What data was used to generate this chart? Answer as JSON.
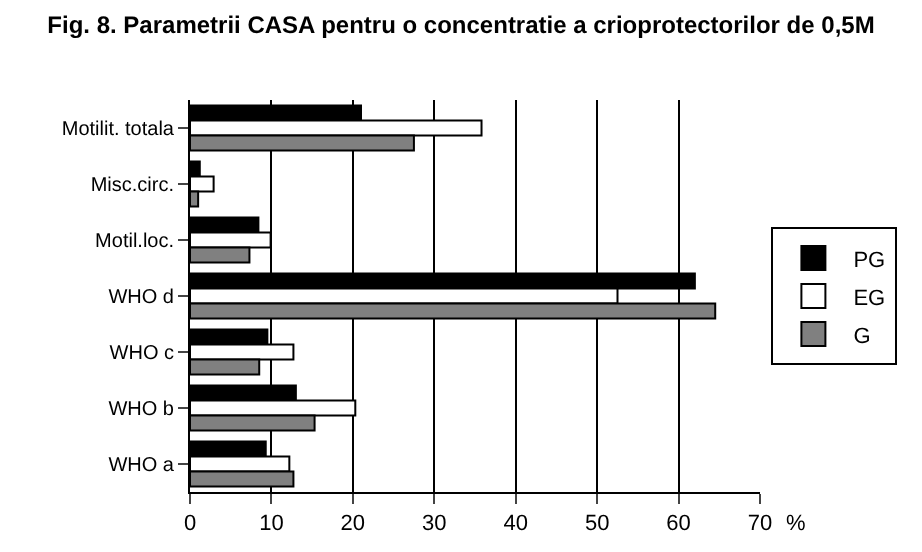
{
  "chart_data": {
    "type": "bar",
    "orientation": "horizontal",
    "title": "Fig. 8. Parametrii CASA pentru o concentratie a crioprotectorilor de 0,5M",
    "xlabel": "%",
    "categories": [
      "Motilit. totala",
      "Misc.circ.",
      "Motil.loc.",
      "WHO d",
      "WHO c",
      "WHO b",
      "WHO a"
    ],
    "series": [
      {
        "name": "PG",
        "color": "#000000",
        "values": [
          21,
          1.2,
          8.4,
          62,
          9.5,
          13,
          9.3
        ]
      },
      {
        "name": "EG",
        "color": "#ffffff",
        "values": [
          35.8,
          2.9,
          9.9,
          52.5,
          12.7,
          20.3,
          12.2
        ]
      },
      {
        "name": "G",
        "color": "#808080",
        "values": [
          27.5,
          1,
          7.3,
          64.5,
          8.5,
          15.3,
          12.7
        ]
      }
    ],
    "xlim": [
      0,
      70
    ],
    "xticks": [
      0,
      10,
      20,
      30,
      40,
      50,
      60,
      70
    ],
    "grid": "x",
    "legend": "right"
  }
}
